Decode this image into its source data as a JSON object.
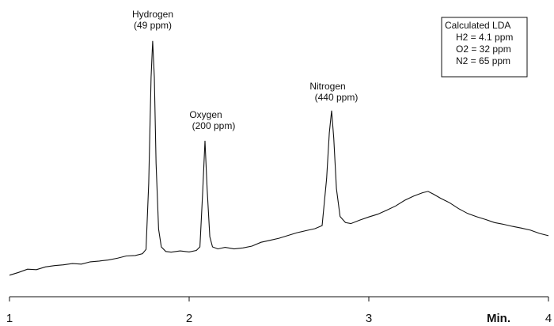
{
  "chart_data": {
    "type": "line",
    "xlabel": "Min.",
    "x": [
      1.0,
      1.05,
      1.1,
      1.15,
      1.2,
      1.25,
      1.3,
      1.35,
      1.4,
      1.45,
      1.5,
      1.55,
      1.6,
      1.65,
      1.7,
      1.74,
      1.76,
      1.775,
      1.788,
      1.797,
      1.806,
      1.816,
      1.83,
      1.845,
      1.87,
      1.9,
      1.95,
      2.0,
      2.04,
      2.06,
      2.075,
      2.088,
      2.1,
      2.115,
      2.13,
      2.16,
      2.2,
      2.25,
      2.3,
      2.35,
      2.4,
      2.45,
      2.5,
      2.55,
      2.6,
      2.65,
      2.7,
      2.74,
      2.765,
      2.78,
      2.793,
      2.805,
      2.82,
      2.84,
      2.87,
      2.9,
      2.95,
      3.0,
      3.05,
      3.1,
      3.15,
      3.2,
      3.25,
      3.3,
      3.33,
      3.36,
      3.4,
      3.45,
      3.5,
      3.55,
      3.6,
      3.65,
      3.7,
      3.75,
      3.8,
      3.85,
      3.9,
      3.95,
      4.0
    ],
    "series": [
      {
        "color": "#111111",
        "values": [
          3.8,
          4.9,
          6.2,
          6.0,
          7.1,
          7.6,
          7.9,
          8.4,
          8.2,
          9.1,
          9.4,
          9.8,
          10.5,
          11.4,
          11.6,
          12.3,
          14,
          40,
          82,
          96.3,
          82,
          48,
          22,
          15,
          13.2,
          12.9,
          13.4,
          13.0,
          13.6,
          15,
          36,
          56.9,
          38,
          19,
          15,
          14.2,
          14.8,
          14.2,
          14.6,
          15.3,
          16.8,
          17.6,
          18.4,
          19.5,
          20.6,
          21.4,
          22.2,
          23.4,
          42,
          60,
          68.8,
          58,
          38,
          27,
          24.6,
          24.2,
          25.6,
          26.8,
          27.9,
          29.5,
          31.2,
          33.4,
          35.1,
          36.4,
          36.9,
          35.8,
          34.2,
          32.4,
          30.1,
          28.2,
          26.9,
          25.8,
          24.6,
          23.9,
          23.1,
          22.4,
          21.6,
          20.3,
          19.4
        ]
      }
    ],
    "xlim": [
      1,
      4
    ],
    "xticks": [
      1,
      2,
      3,
      4
    ],
    "ylim": [
      0,
      100
    ],
    "annotations": [
      [
        "Hydrogen",
        "(49 ppm)"
      ],
      [
        "Oxygen",
        "(200 ppm)"
      ],
      [
        "Nitrogen",
        "(440 ppm)"
      ]
    ],
    "legend": {
      "title": "Calculated LDA",
      "items": [
        "H2 = 4.1 ppm",
        "O2 = 32 ppm",
        "N2 = 65 ppm"
      ]
    }
  }
}
